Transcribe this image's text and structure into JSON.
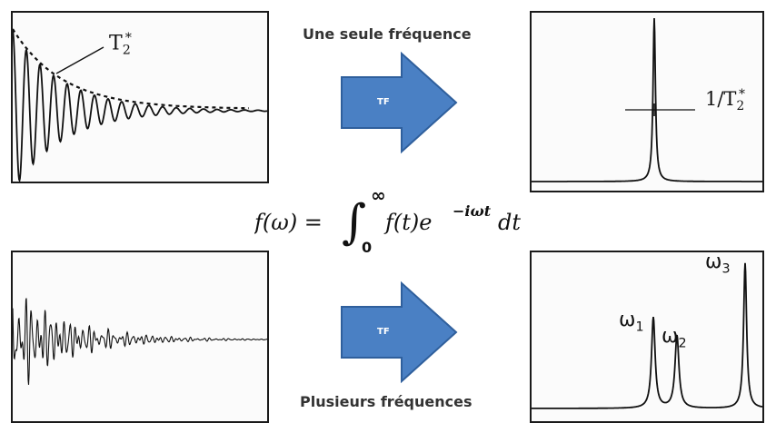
{
  "top_caption": "Une seule fréquence",
  "bottom_caption": "Plusieurs fréquences",
  "arrow_label": "TF",
  "fid_label": {
    "base": "T",
    "sub": "2",
    "sup": "*"
  },
  "linewidth_label": {
    "base": "1/T",
    "sub": "2",
    "sup": "*"
  },
  "peaks": [
    {
      "base": "ω",
      "sub": "1"
    },
    {
      "base": "ω",
      "sub": "2"
    },
    {
      "base": "ω",
      "sub": "3"
    }
  ],
  "formula": {
    "lhs": "f(ω) =",
    "lower": "0",
    "upper": "∞",
    "integrand": "f(t)e",
    "exponent": "−iωt",
    "dt": "dt"
  },
  "colors": {
    "arrow": "#4a80c4",
    "arrow_dark": "#2f5f9c",
    "signal": "#111111"
  }
}
